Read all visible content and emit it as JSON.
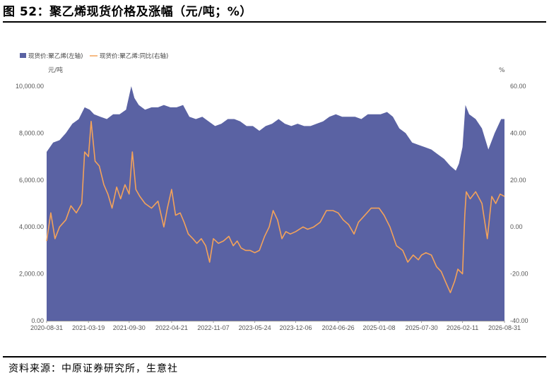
{
  "figure": {
    "title": "图 52：聚乙烯现货价格及涨幅（元/吨；%）",
    "source": "资料来源：中原证券研究所，生意社"
  },
  "colors": {
    "area": "#5a62a3",
    "line": "#f3a25a",
    "axis": "#999999"
  },
  "chart_data": {
    "type": "area",
    "title": "",
    "legend": {
      "placement": "top-left",
      "entries": [
        "现货价:聚乙烯(左轴)",
        "现货价:聚乙烯:同比(右轴)"
      ]
    },
    "y_left": {
      "unit": "元/吨",
      "ylim": [
        0,
        10000
      ],
      "ticks": [
        "0.00",
        "2,000.00",
        "4,000.00",
        "6,000.00",
        "8,000.00",
        "10,000.00"
      ]
    },
    "y_right": {
      "unit": "%",
      "ylim": [
        -40,
        60
      ],
      "ticks": [
        "-40.00",
        "-20.00",
        "0.00",
        "20.00",
        "40.00",
        "60.00"
      ]
    },
    "x_ticks": [
      "2020-08-31",
      "2021-03-19",
      "2021-09-30",
      "2022-04-21",
      "2022-11-07",
      "2023-05-24",
      "2023-12-06",
      "2024-06-26",
      "2025-01-08",
      "2025-07-30",
      "2026-02-11",
      "2026-08-31"
    ],
    "x_range": [
      "2020-08-31",
      "2026-08-31"
    ],
    "series": [
      {
        "name": "现货价:聚乙烯(左轴)",
        "axis": "left",
        "type": "area",
        "points": [
          [
            "2020-08-31",
            7200
          ],
          [
            "2020-10-01",
            7600
          ],
          [
            "2020-11-01",
            7700
          ],
          [
            "2020-12-01",
            8000
          ],
          [
            "2021-01-01",
            8400
          ],
          [
            "2021-02-01",
            8600
          ],
          [
            "2021-03-01",
            9100
          ],
          [
            "2021-03-25",
            9000
          ],
          [
            "2021-04-15",
            8800
          ],
          [
            "2021-05-15",
            8700
          ],
          [
            "2021-06-15",
            8600
          ],
          [
            "2021-07-15",
            8800
          ],
          [
            "2021-08-15",
            8800
          ],
          [
            "2021-09-15",
            9000
          ],
          [
            "2021-10-10",
            10000
          ],
          [
            "2021-10-25",
            9500
          ],
          [
            "2021-11-15",
            9200
          ],
          [
            "2021-12-15",
            9000
          ],
          [
            "2022-01-15",
            9100
          ],
          [
            "2022-02-15",
            9100
          ],
          [
            "2022-03-15",
            9200
          ],
          [
            "2022-04-15",
            9100
          ],
          [
            "2022-05-15",
            9100
          ],
          [
            "2022-06-15",
            9200
          ],
          [
            "2022-07-15",
            8700
          ],
          [
            "2022-08-15",
            8600
          ],
          [
            "2022-09-15",
            8700
          ],
          [
            "2022-10-15",
            8500
          ],
          [
            "2022-11-15",
            8300
          ],
          [
            "2022-12-15",
            8400
          ],
          [
            "2023-01-15",
            8600
          ],
          [
            "2023-02-15",
            8600
          ],
          [
            "2023-03-15",
            8500
          ],
          [
            "2023-04-15",
            8300
          ],
          [
            "2023-05-15",
            8300
          ],
          [
            "2023-06-15",
            8100
          ],
          [
            "2023-07-15",
            8300
          ],
          [
            "2023-08-15",
            8400
          ],
          [
            "2023-09-15",
            8600
          ],
          [
            "2023-10-15",
            8400
          ],
          [
            "2023-11-15",
            8300
          ],
          [
            "2023-12-15",
            8400
          ],
          [
            "2024-01-15",
            8300
          ],
          [
            "2024-02-15",
            8300
          ],
          [
            "2024-03-15",
            8400
          ],
          [
            "2024-04-15",
            8500
          ],
          [
            "2024-05-15",
            8700
          ],
          [
            "2024-06-15",
            8800
          ],
          [
            "2024-07-15",
            8700
          ],
          [
            "2024-08-15",
            8700
          ],
          [
            "2024-09-15",
            8700
          ],
          [
            "2024-10-15",
            8600
          ],
          [
            "2024-11-15",
            8800
          ],
          [
            "2024-12-15",
            8800
          ],
          [
            "2025-01-15",
            8800
          ],
          [
            "2025-02-15",
            8900
          ],
          [
            "2025-03-15",
            8700
          ],
          [
            "2025-04-15",
            8200
          ],
          [
            "2025-05-15",
            8000
          ],
          [
            "2025-06-15",
            7600
          ],
          [
            "2025-07-15",
            7500
          ],
          [
            "2025-08-15",
            7400
          ],
          [
            "2025-09-15",
            7300
          ],
          [
            "2025-10-15",
            7100
          ],
          [
            "2025-11-15",
            6900
          ],
          [
            "2025-12-15",
            6600
          ],
          [
            "2026-01-10",
            6400
          ],
          [
            "2026-01-25",
            6700
          ],
          [
            "2026-02-11",
            7400
          ],
          [
            "2026-02-25",
            9200
          ],
          [
            "2026-03-15",
            8800
          ],
          [
            "2026-04-15",
            8600
          ],
          [
            "2026-05-15",
            8200
          ],
          [
            "2026-06-15",
            7300
          ],
          [
            "2026-07-15",
            8000
          ],
          [
            "2026-08-15",
            8600
          ],
          [
            "2026-08-31",
            8600
          ]
        ]
      },
      {
        "name": "现货价:聚乙烯:同比(右轴)",
        "axis": "right",
        "type": "line",
        "points": [
          [
            "2020-08-31",
            -6
          ],
          [
            "2020-09-20",
            6
          ],
          [
            "2020-10-10",
            -5
          ],
          [
            "2020-11-01",
            0
          ],
          [
            "2020-12-01",
            3
          ],
          [
            "2020-12-25",
            9
          ],
          [
            "2021-01-20",
            6
          ],
          [
            "2021-02-15",
            10
          ],
          [
            "2021-03-01",
            32
          ],
          [
            "2021-03-19",
            30
          ],
          [
            "2021-04-01",
            45
          ],
          [
            "2021-04-20",
            28
          ],
          [
            "2021-05-10",
            26
          ],
          [
            "2021-06-01",
            18
          ],
          [
            "2021-06-20",
            14
          ],
          [
            "2021-07-10",
            8
          ],
          [
            "2021-08-01",
            17
          ],
          [
            "2021-08-20",
            12
          ],
          [
            "2021-09-10",
            18
          ],
          [
            "2021-09-30",
            14
          ],
          [
            "2021-10-15",
            32
          ],
          [
            "2021-11-01",
            16
          ],
          [
            "2021-11-20",
            13
          ],
          [
            "2021-12-15",
            10
          ],
          [
            "2022-01-15",
            8
          ],
          [
            "2022-02-15",
            11
          ],
          [
            "2022-03-15",
            0
          ],
          [
            "2022-04-01",
            8
          ],
          [
            "2022-04-21",
            16
          ],
          [
            "2022-05-10",
            5
          ],
          [
            "2022-06-01",
            6
          ],
          [
            "2022-06-20",
            2
          ],
          [
            "2022-07-10",
            -3
          ],
          [
            "2022-08-01",
            -5
          ],
          [
            "2022-08-20",
            -7
          ],
          [
            "2022-09-10",
            -5
          ],
          [
            "2022-10-01",
            -8
          ],
          [
            "2022-10-20",
            -15
          ],
          [
            "2022-11-07",
            -5
          ],
          [
            "2022-12-01",
            -7
          ],
          [
            "2022-12-25",
            -6
          ],
          [
            "2023-01-20",
            -4
          ],
          [
            "2023-02-10",
            -8
          ],
          [
            "2023-03-01",
            -6
          ],
          [
            "2023-03-20",
            -9
          ],
          [
            "2023-04-10",
            -10
          ],
          [
            "2023-05-01",
            -10
          ],
          [
            "2023-05-24",
            -11
          ],
          [
            "2023-06-15",
            -10
          ],
          [
            "2023-07-10",
            -4
          ],
          [
            "2023-08-01",
            0
          ],
          [
            "2023-08-20",
            7
          ],
          [
            "2023-09-10",
            3
          ],
          [
            "2023-10-01",
            -5
          ],
          [
            "2023-10-20",
            -2
          ],
          [
            "2023-11-10",
            -3
          ],
          [
            "2023-12-06",
            -2
          ],
          [
            "2024-01-10",
            0
          ],
          [
            "2024-02-01",
            -1
          ],
          [
            "2024-03-01",
            0
          ],
          [
            "2024-04-01",
            2
          ],
          [
            "2024-05-01",
            7
          ],
          [
            "2024-06-01",
            7
          ],
          [
            "2024-06-26",
            6
          ],
          [
            "2024-07-20",
            3
          ],
          [
            "2024-08-15",
            1
          ],
          [
            "2024-09-10",
            -3
          ],
          [
            "2024-10-01",
            2
          ],
          [
            "2024-11-01",
            5
          ],
          [
            "2024-12-01",
            8
          ],
          [
            "2025-01-08",
            8
          ],
          [
            "2025-02-01",
            5
          ],
          [
            "2025-03-01",
            0
          ],
          [
            "2025-04-01",
            -8
          ],
          [
            "2025-05-01",
            -10
          ],
          [
            "2025-05-25",
            -15
          ],
          [
            "2025-06-20",
            -12
          ],
          [
            "2025-07-15",
            -14
          ],
          [
            "2025-07-30",
            -12
          ],
          [
            "2025-08-20",
            -11
          ],
          [
            "2025-09-15",
            -12
          ],
          [
            "2025-10-10",
            -17
          ],
          [
            "2025-11-01",
            -19
          ],
          [
            "2025-11-25",
            -24
          ],
          [
            "2025-12-15",
            -28
          ],
          [
            "2026-01-05",
            -23
          ],
          [
            "2026-01-20",
            -18
          ],
          [
            "2026-02-11",
            -20
          ],
          [
            "2026-02-22",
            5
          ],
          [
            "2026-03-01",
            15
          ],
          [
            "2026-03-20",
            12
          ],
          [
            "2026-04-15",
            15
          ],
          [
            "2026-05-15",
            10
          ],
          [
            "2026-06-10",
            -5
          ],
          [
            "2026-07-01",
            13
          ],
          [
            "2026-07-20",
            10
          ],
          [
            "2026-08-10",
            14
          ],
          [
            "2026-08-31",
            13
          ]
        ]
      }
    ]
  }
}
